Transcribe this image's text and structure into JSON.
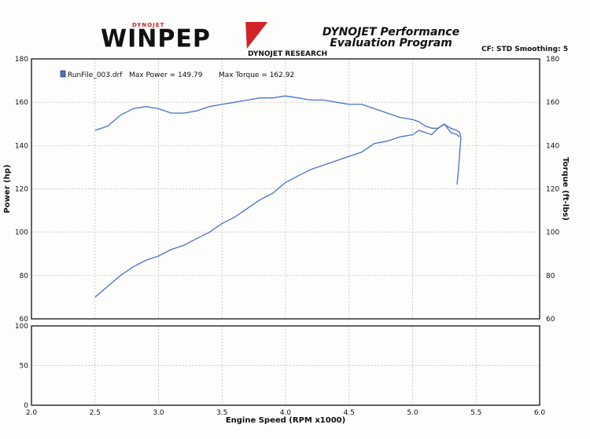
{
  "header": {
    "logo_text": "WINPEP",
    "logo_small_text": "DYNOJET",
    "subtitle_line1": "DYNOJET Performance",
    "subtitle_line2": "Evaluation Program",
    "company": "DYNOJET RESEARCH",
    "settings": "CF: STD  Smoothing: 5"
  },
  "colors": {
    "curve": "#4a72c8",
    "grid": "#b8b8b8",
    "frame": "#222222",
    "logo_accent": "#d2222a"
  },
  "chart_data": [
    {
      "type": "line",
      "xlabel": "Engine Speed (RPM x1000)",
      "ylabel": "Power (hp)",
      "y2label": "Torque (ft-lbs)",
      "xlim": [
        2.0,
        6.0
      ],
      "ylim": [
        60,
        180
      ],
      "y2lim": [
        60,
        180
      ],
      "xticks": [
        "2.0",
        "2.5",
        "3.0",
        "3.5",
        "4.0",
        "4.5",
        "5.0",
        "5.5",
        "6.0"
      ],
      "yticks": [
        "60",
        "80",
        "100",
        "120",
        "140",
        "160",
        "180"
      ],
      "y2ticks": [
        "60",
        "80",
        "100",
        "120",
        "140",
        "160",
        "180"
      ],
      "grid": true,
      "legend": {
        "position": "top-left",
        "file": "RunFile_003.drf",
        "max_power_label": "Max Power = 149.79",
        "max_torque_label": "Max Torque = 162.92"
      },
      "series": [
        {
          "name": "Power",
          "x": [
            2.5,
            2.6,
            2.7,
            2.8,
            2.9,
            3.0,
            3.1,
            3.2,
            3.3,
            3.4,
            3.5,
            3.6,
            3.7,
            3.8,
            3.9,
            4.0,
            4.1,
            4.2,
            4.3,
            4.4,
            4.5,
            4.6,
            4.7,
            4.8,
            4.9,
            5.0,
            5.05,
            5.1,
            5.15,
            5.2,
            5.25,
            5.3,
            5.35,
            5.37,
            5.38,
            5.36,
            5.35
          ],
          "y": [
            70,
            75,
            80,
            84,
            87,
            89,
            92,
            94,
            97,
            100,
            104,
            107,
            111,
            115,
            118,
            123,
            126,
            129,
            131,
            133,
            135,
            137,
            141,
            142,
            144,
            145,
            147,
            146,
            145,
            148,
            149.8,
            148,
            147,
            146,
            144,
            128,
            122
          ]
        },
        {
          "name": "Torque",
          "x": [
            2.5,
            2.6,
            2.7,
            2.8,
            2.9,
            3.0,
            3.1,
            3.2,
            3.3,
            3.4,
            3.5,
            3.6,
            3.7,
            3.8,
            3.9,
            4.0,
            4.1,
            4.2,
            4.3,
            4.4,
            4.5,
            4.6,
            4.7,
            4.8,
            4.9,
            5.0,
            5.05,
            5.1,
            5.15,
            5.2,
            5.25,
            5.3,
            5.35,
            5.37
          ],
          "y": [
            147,
            149,
            154,
            157,
            158,
            157,
            155,
            155,
            156,
            158,
            159,
            160,
            161,
            162,
            162,
            162.9,
            162,
            161,
            161,
            160,
            159,
            159,
            157,
            155,
            153,
            152,
            151,
            149,
            148,
            148,
            150,
            146,
            145,
            144
          ]
        }
      ]
    },
    {
      "type": "line",
      "xlim": [
        2.0,
        6.0
      ],
      "ylim": [
        0,
        100
      ],
      "xticks": [
        "2.0",
        "2.5",
        "3.0",
        "3.5",
        "4.0",
        "4.5",
        "5.0",
        "5.5",
        "6.0"
      ],
      "yticks": [
        "0",
        "50",
        "100"
      ],
      "grid": true,
      "series": []
    }
  ]
}
